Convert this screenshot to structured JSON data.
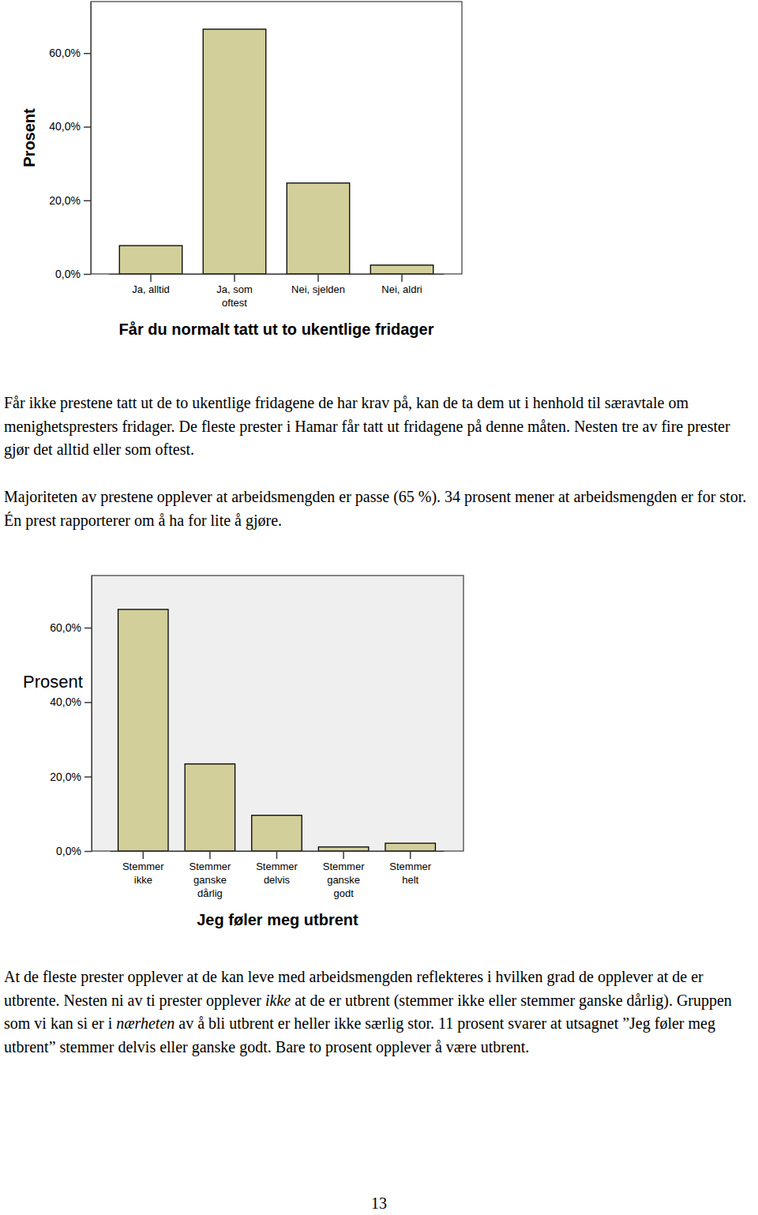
{
  "chart_data": [
    {
      "type": "bar",
      "x_label": "Får du normalt tatt ut to ukentlige fridager",
      "y_label": "Prosent",
      "categories": [
        "Ja, alltid",
        "Ja, som oftest",
        "Nei, sjelden",
        "Nei, aldri"
      ],
      "values": [
        7.7,
        66.5,
        24.7,
        2.4
      ],
      "color": "#d3cf9b",
      "ylim": [
        0,
        74
      ],
      "yticks": [
        {
          "value": 0,
          "label": "0,0%"
        },
        {
          "value": 20,
          "label": "20,0%"
        },
        {
          "value": 40,
          "label": "40,0%"
        },
        {
          "value": 60,
          "label": "60,0%"
        }
      ],
      "grid": false
    },
    {
      "type": "bar",
      "x_label": "Jeg føler meg utbrent",
      "y_label": "Prosent",
      "categories": [
        "Stemmer ikke",
        "Stemmer ganske dårlig",
        "Stemmer delvis",
        "Stemmer ganske godt",
        "Stemmer helt"
      ],
      "values": [
        64.9,
        23.4,
        9.6,
        1.1,
        2.1
      ],
      "color": "#d3cf9b",
      "ylim": [
        0,
        74
      ],
      "yticks": [
        {
          "value": 0,
          "label": "0,0%"
        },
        {
          "value": 20,
          "label": "20,0%"
        },
        {
          "value": 40,
          "label": "40,0%"
        },
        {
          "value": 60,
          "label": "60,0%"
        }
      ],
      "grid": false
    }
  ],
  "paragraphs": [
    {
      "runs": [
        {
          "text": "Får ikke prestene tatt ut de to ukentlige fridagene de har krav på, kan de ta dem ut i henhold til særavtale om menighetspresters fridager. De fleste prester i Hamar får tatt ut fridagene på denne måten. Nesten tre av fire prester gjør det alltid eller som oftest.",
          "italic": false
        }
      ]
    },
    {
      "runs": [
        {
          "text": "Majoriteten av prestene opplever at arbeidsmengden er passe (65 %). 34 prosent mener at arbeidsmengden er for stor. Én prest rapporterer om å ha for lite å gjøre.",
          "italic": false
        }
      ]
    },
    {
      "runs": [
        {
          "text": "At de fleste prester opplever at de kan leve med arbeidsmengden reflekteres i hvilken grad de opplever at de er utbrente. Nesten ni av ti prester opplever ",
          "italic": false
        },
        {
          "text": "ikke",
          "italic": true
        },
        {
          "text": " at de er utbrent (stemmer ikke eller stemmer ganske dårlig). Gruppen som vi kan si er i ",
          "italic": false
        },
        {
          "text": "nærheten",
          "italic": true
        },
        {
          "text": " av å bli utbrent er heller ikke særlig stor. 11 prosent svarer at utsagnet ”Jeg føler meg utbrent” stemmer delvis eller ganske godt. Bare to prosent opplever å være utbrent.",
          "italic": false
        }
      ]
    }
  ],
  "page_number": 13
}
